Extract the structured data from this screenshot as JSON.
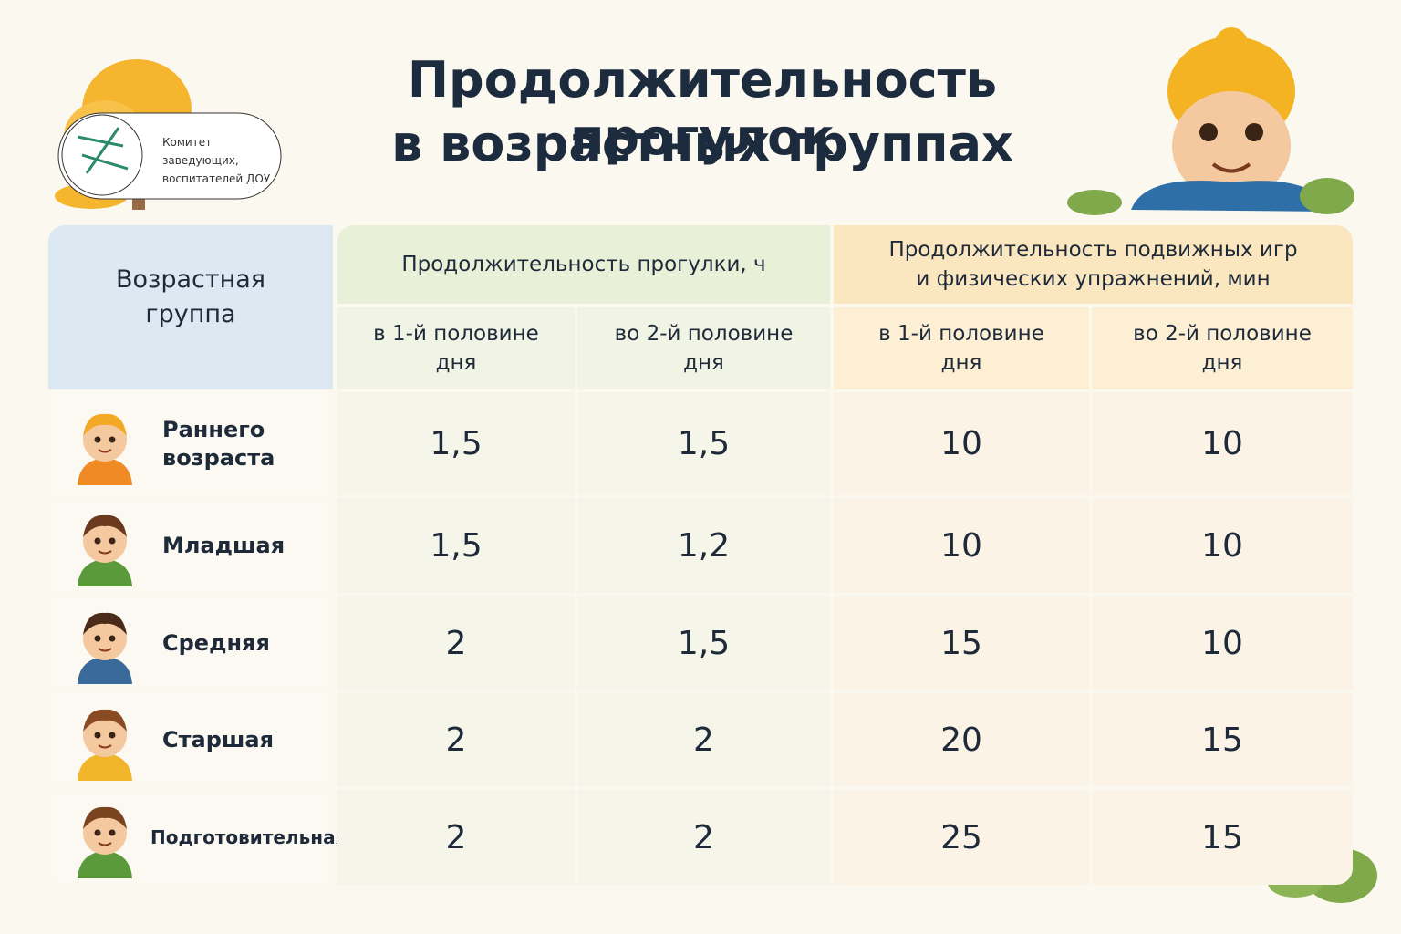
{
  "header": {
    "title": [
      "Продолжительность прогулок",
      "в возрастных группах"
    ],
    "logo_text": [
      "Комитет",
      "заведующих,",
      "воспитателей ДОУ"
    ]
  },
  "table": {
    "corner": [
      "Возрастная",
      "группа"
    ],
    "groups": [
      {
        "title": [
          "Продолжительность прогулки, ч"
        ],
        "columns": [
          [
            "в 1-й половине",
            "дня"
          ],
          [
            "во 2-й половине",
            "дня"
          ]
        ]
      },
      {
        "title": [
          "Продолжительность подвижных игр",
          "и физических упражнений, мин"
        ],
        "columns": [
          [
            "в 1-й половине",
            "дня"
          ],
          [
            "во 2-й половине",
            "дня"
          ]
        ]
      }
    ],
    "rows": [
      {
        "label": [
          "Раннего",
          "возраста"
        ],
        "cells": [
          "1,5",
          "1,5",
          "10",
          "10"
        ]
      },
      {
        "label": [
          "Младшая"
        ],
        "cells": [
          "1,5",
          "1,2",
          "10",
          "10"
        ]
      },
      {
        "label": [
          "Средняя"
        ],
        "cells": [
          "2",
          "1,5",
          "15",
          "10"
        ]
      },
      {
        "label": [
          "Старшая"
        ],
        "cells": [
          "2",
          "2",
          "20",
          "15"
        ]
      },
      {
        "label": [
          "Подготовительная"
        ],
        "cells": [
          "2",
          "2",
          "25",
          "15"
        ]
      }
    ]
  }
}
